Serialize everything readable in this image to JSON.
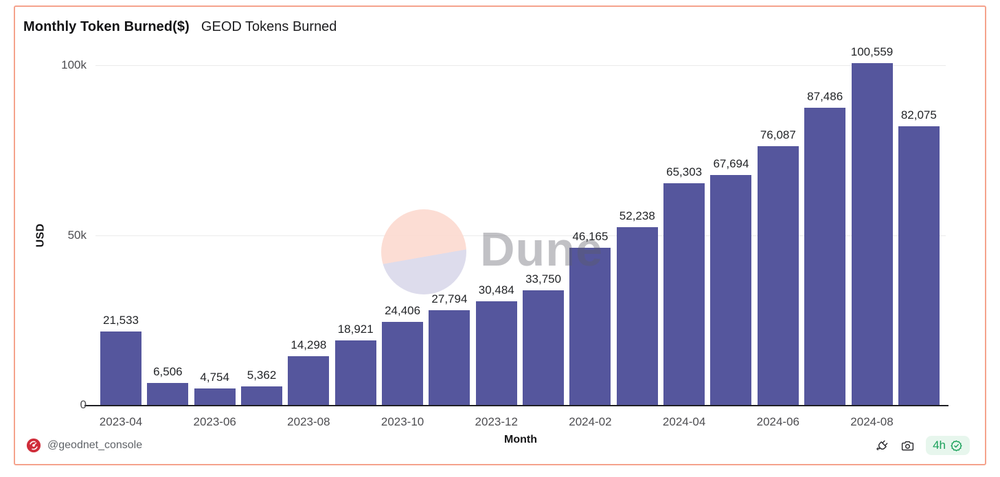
{
  "header": {
    "title": "Monthly Token Burned($)",
    "subtitle": "GEOD Tokens Burned"
  },
  "chart_data": {
    "type": "bar",
    "title": "Monthly Token Burned($)",
    "subtitle": "GEOD Tokens Burned",
    "xlabel": "Month",
    "ylabel": "USD",
    "ylim": [
      0,
      100000
    ],
    "grid": "horizontal-only",
    "legend": false,
    "bar_color": "#55569d",
    "yticks": [
      {
        "v": 100000,
        "label": "100k"
      },
      {
        "v": 50000,
        "label": "50k"
      },
      {
        "v": 0,
        "label": "0"
      }
    ],
    "x_ticks_shown": [
      "2023-04",
      "2023-06",
      "2023-08",
      "2023-10",
      "2023-12",
      "2024-02",
      "2024-04",
      "2024-06",
      "2024-08"
    ],
    "points": [
      {
        "month": "2023-04",
        "value": 21533,
        "label": "21,533",
        "tick": true
      },
      {
        "month": "2023-05",
        "value": 6506,
        "label": "6,506",
        "tick": false
      },
      {
        "month": "2023-06",
        "value": 4754,
        "label": "4,754",
        "tick": true
      },
      {
        "month": "2023-07",
        "value": 5362,
        "label": "5,362",
        "tick": false
      },
      {
        "month": "2023-08",
        "value": 14298,
        "label": "14,298",
        "tick": true
      },
      {
        "month": "2023-09",
        "value": 18921,
        "label": "18,921",
        "tick": false
      },
      {
        "month": "2023-10",
        "value": 24406,
        "label": "24,406",
        "tick": true
      },
      {
        "month": "2023-11",
        "value": 27794,
        "label": "27,794",
        "tick": false
      },
      {
        "month": "2023-12",
        "value": 30484,
        "label": "30,484",
        "tick": true
      },
      {
        "month": "2024-01",
        "value": 33750,
        "label": "33,750",
        "tick": false
      },
      {
        "month": "2024-02",
        "value": 46165,
        "label": "46,165",
        "tick": true
      },
      {
        "month": "2024-03",
        "value": 52238,
        "label": "52,238",
        "tick": false
      },
      {
        "month": "2024-04",
        "value": 65303,
        "label": "65,303",
        "tick": true
      },
      {
        "month": "2024-05",
        "value": 67694,
        "label": "67,694",
        "tick": false
      },
      {
        "month": "2024-06",
        "value": 76087,
        "label": "76,087",
        "tick": true
      },
      {
        "month": "2024-07",
        "value": 87486,
        "label": "87,486",
        "tick": false
      },
      {
        "month": "2024-08",
        "value": 100559,
        "label": "100,559",
        "tick": true
      },
      {
        "month": "2024-09",
        "value": 82075,
        "label": "82,075",
        "tick": false
      }
    ]
  },
  "watermark": {
    "text": "Dune",
    "circle_top_color": "#fcd9cf",
    "circle_bottom_color": "#d9d8ea"
  },
  "footer": {
    "handle": "@geodnet_console",
    "avatar_color": "#cf2d3a",
    "badge": {
      "text": "4h",
      "color": "#1aa15a",
      "bg": "#e7f6ed"
    }
  }
}
